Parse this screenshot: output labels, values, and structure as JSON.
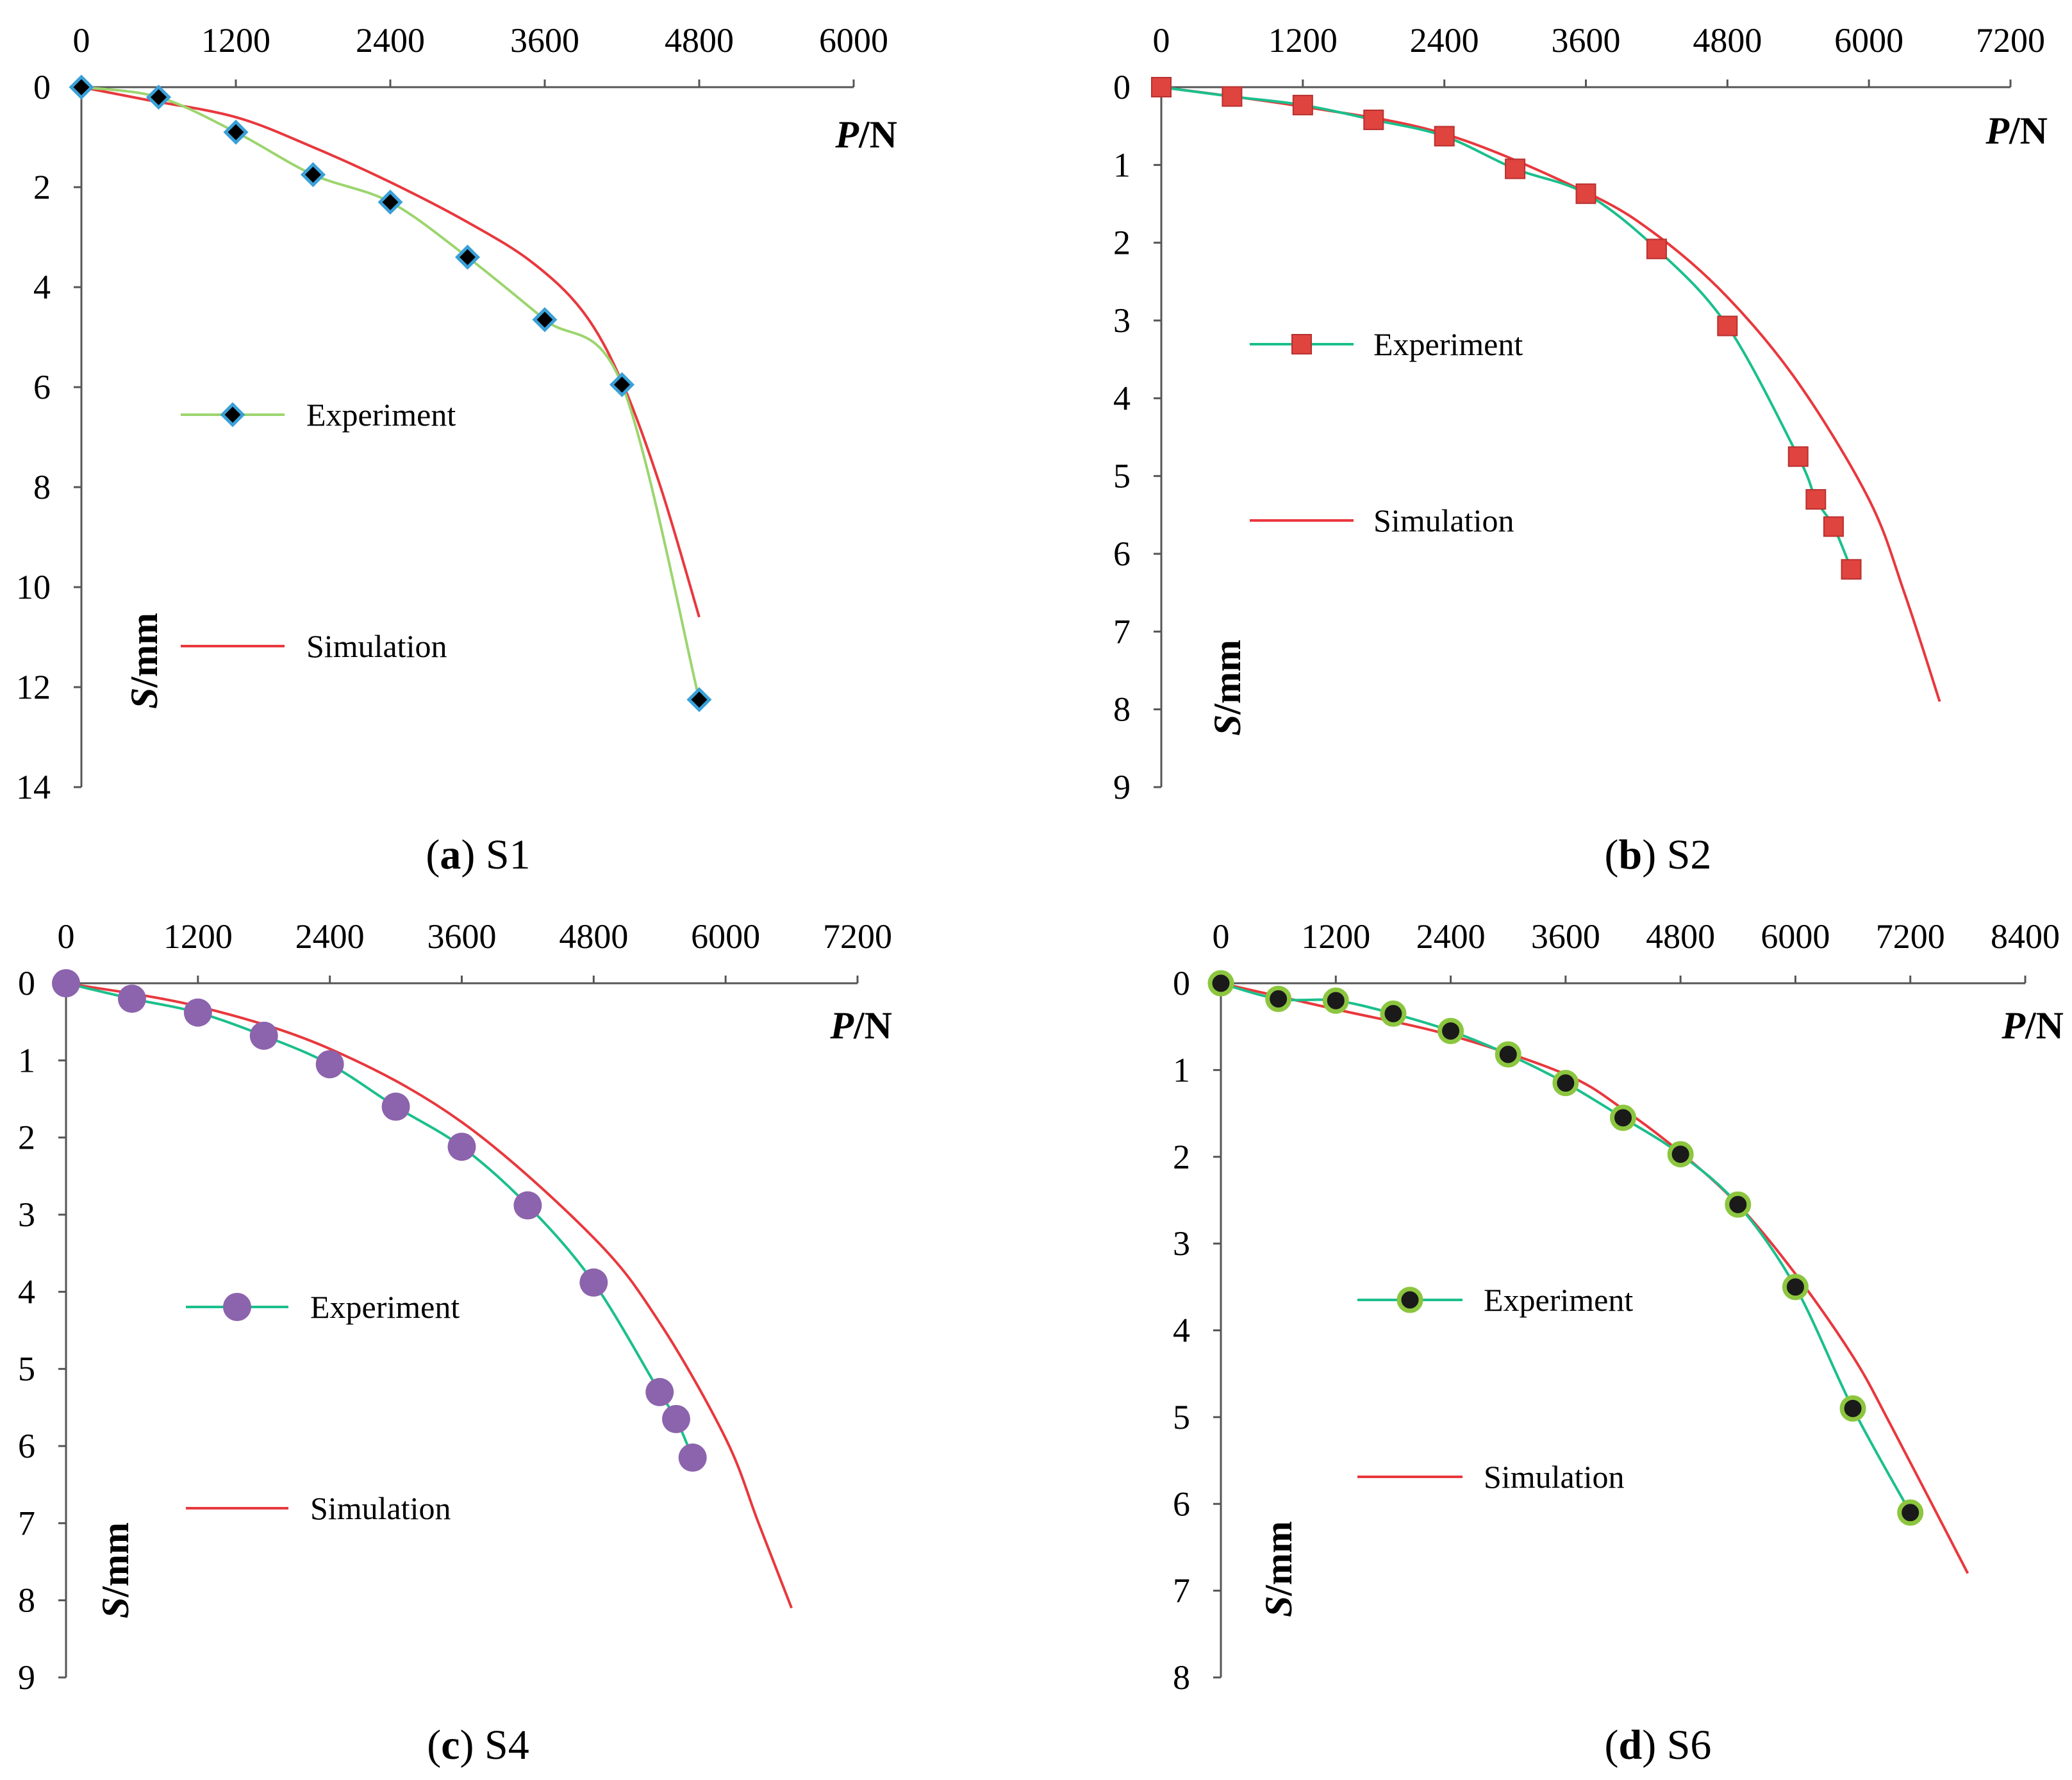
{
  "chart_data": [
    {
      "id": "s1",
      "type": "line",
      "caption_letter": "a",
      "caption_name": "S1",
      "xlabel": {
        "var": "P",
        "unit": "/N"
      },
      "ylabel": {
        "var": "S",
        "unit": "/mm"
      },
      "x_ticks": [
        "0",
        "1200",
        "2400",
        "3600",
        "4800",
        "6000"
      ],
      "y_ticks": [
        "0",
        "2",
        "4",
        "6",
        "8",
        "10",
        "12",
        "14"
      ],
      "xlim": [
        0,
        6000
      ],
      "ylim": [
        0,
        14
      ],
      "legend": {
        "experiment": "Experiment",
        "simulation": "Simulation"
      },
      "colors": {
        "exp_line": "#9cd56e",
        "marker": "#000000",
        "marker_edge": "#3aa0d8",
        "sim": "#e8383d"
      },
      "marker_shape": "diamond",
      "series": [
        {
          "name": "Experiment",
          "x": [
            0,
            600,
            1200,
            1800,
            2400,
            3000,
            3600,
            4200,
            4800
          ],
          "y": [
            0,
            0.2,
            0.9,
            1.75,
            2.3,
            3.4,
            4.65,
            5.95,
            12.25
          ]
        },
        {
          "name": "Simulation",
          "x": [
            0,
            500,
            1200,
            1800,
            2400,
            3000,
            3500,
            3900,
            4200,
            4500,
            4800
          ],
          "y": [
            0,
            0.25,
            0.6,
            1.2,
            1.9,
            2.7,
            3.5,
            4.5,
            5.9,
            8.0,
            10.6
          ]
        }
      ]
    },
    {
      "id": "s2",
      "type": "line",
      "caption_letter": "b",
      "caption_name": "S2",
      "xlabel": {
        "var": "P",
        "unit": "/N"
      },
      "ylabel": {
        "var": "S",
        "unit": "/mm"
      },
      "x_ticks": [
        "0",
        "1200",
        "2400",
        "3600",
        "4800",
        "6000",
        "7200"
      ],
      "y_ticks": [
        "0",
        "1",
        "2",
        "3",
        "4",
        "5",
        "6",
        "7",
        "8",
        "9"
      ],
      "xlim": [
        0,
        7200
      ],
      "ylim": [
        0,
        9
      ],
      "legend": {
        "experiment": "Experiment",
        "simulation": "Simulation"
      },
      "colors": {
        "exp_line": "#1bbf8c",
        "marker": "#e0443e",
        "marker_edge": "#b83030",
        "sim": "#e8383d"
      },
      "marker_shape": "square",
      "series": [
        {
          "name": "Experiment",
          "x": [
            0,
            600,
            1200,
            1800,
            2400,
            3000,
            3600,
            4200,
            4800,
            5400,
            5550,
            5700,
            5850
          ],
          "y": [
            0,
            0.12,
            0.23,
            0.42,
            0.63,
            1.05,
            1.37,
            2.08,
            3.07,
            4.75,
            5.3,
            5.65,
            6.2
          ]
        },
        {
          "name": "Simulation",
          "x": [
            0,
            1200,
            2400,
            3600,
            4200,
            4800,
            5400,
            6000,
            6300,
            6600
          ],
          "y": [
            0,
            0.25,
            0.6,
            1.35,
            1.9,
            2.7,
            3.8,
            5.3,
            6.5,
            7.9
          ]
        }
      ]
    },
    {
      "id": "s4",
      "type": "line",
      "caption_letter": "c",
      "caption_name": "S4",
      "xlabel": {
        "var": "P",
        "unit": "/N"
      },
      "ylabel": {
        "var": "S",
        "unit": "/mm"
      },
      "x_ticks": [
        "0",
        "1200",
        "2400",
        "3600",
        "4800",
        "6000",
        "7200"
      ],
      "y_ticks": [
        "0",
        "1",
        "2",
        "3",
        "4",
        "5",
        "6",
        "7",
        "8",
        "9"
      ],
      "xlim": [
        0,
        7200
      ],
      "ylim": [
        0,
        9
      ],
      "legend": {
        "experiment": "Experiment",
        "simulation": "Simulation"
      },
      "colors": {
        "exp_line": "#1bbf8c",
        "marker": "#8c63ad",
        "marker_edge": "#8c63ad",
        "sim": "#e8383d"
      },
      "marker_shape": "circle",
      "series": [
        {
          "name": "Experiment",
          "x": [
            0,
            600,
            1200,
            1800,
            2400,
            3000,
            3600,
            4200,
            4800,
            5400,
            5550,
            5700
          ],
          "y": [
            0,
            0.2,
            0.38,
            0.68,
            1.05,
            1.6,
            2.12,
            2.88,
            3.88,
            5.3,
            5.65,
            6.15
          ]
        },
        {
          "name": "Simulation",
          "x": [
            0,
            1200,
            2400,
            3600,
            4800,
            5400,
            6000,
            6300,
            6600
          ],
          "y": [
            0,
            0.3,
            0.85,
            1.8,
            3.3,
            4.4,
            5.9,
            7.0,
            8.1
          ]
        }
      ]
    },
    {
      "id": "s6",
      "type": "line",
      "caption_letter": "d",
      "caption_name": "S6",
      "xlabel": {
        "var": "P",
        "unit": "/N"
      },
      "ylabel": {
        "var": "S",
        "unit": "/mm"
      },
      "x_ticks": [
        "0",
        "1200",
        "2400",
        "3600",
        "4800",
        "6000",
        "7200",
        "8400"
      ],
      "y_ticks": [
        "0",
        "1",
        "2",
        "3",
        "4",
        "5",
        "6",
        "7",
        "8"
      ],
      "xlim": [
        0,
        8400
      ],
      "ylim": [
        0,
        8
      ],
      "legend": {
        "experiment": "Experiment",
        "simulation": "Simulation"
      },
      "colors": {
        "exp_line": "#1bbf8c",
        "marker": "#1a1a1a",
        "marker_edge": "#8cc63f",
        "sim": "#e8383d"
      },
      "marker_shape": "circle",
      "series": [
        {
          "name": "Experiment",
          "x": [
            0,
            600,
            1200,
            1800,
            2400,
            3000,
            3600,
            4200,
            4800,
            5400,
            6000,
            6600,
            7200
          ],
          "y": [
            0,
            0.18,
            0.2,
            0.35,
            0.55,
            0.82,
            1.15,
            1.55,
            1.97,
            2.55,
            3.5,
            4.9,
            6.1
          ]
        },
        {
          "name": "Simulation",
          "x": [
            0,
            1200,
            2400,
            3600,
            4200,
            4800,
            5400,
            6000,
            6600,
            7000,
            7800
          ],
          "y": [
            0,
            0.3,
            0.6,
            1.05,
            1.45,
            1.95,
            2.55,
            3.35,
            4.3,
            5.1,
            6.8
          ]
        }
      ]
    }
  ]
}
